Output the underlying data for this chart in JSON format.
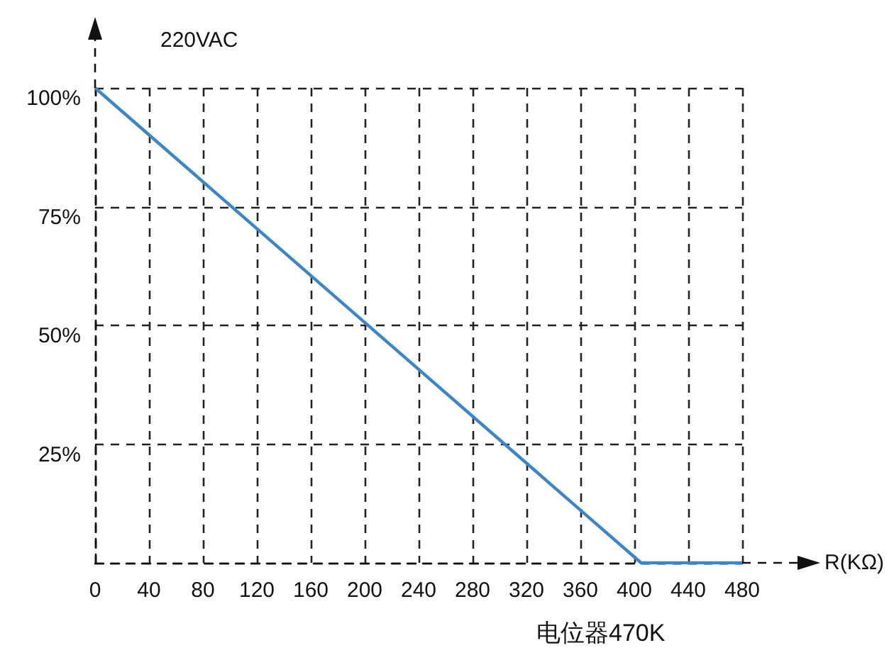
{
  "chart_data": {
    "type": "line",
    "title": "220VAC",
    "xlabel": "R(KΩ)",
    "annotations": [
      "电位器470K"
    ],
    "x": [
      0,
      405,
      480
    ],
    "series": [
      {
        "color": "#3a86c8",
        "values": [
          100,
          0,
          0
        ]
      }
    ],
    "xlim": [
      0,
      480
    ],
    "xticks": [
      0,
      40,
      80,
      120,
      160,
      200,
      240,
      280,
      320,
      360,
      400,
      440,
      480
    ],
    "ylim": [
      0,
      100
    ],
    "yticks": [
      {
        "value": 0,
        "label": null
      },
      {
        "value": 25,
        "label": "25%"
      },
      {
        "value": 50,
        "label": "50%"
      },
      {
        "value": 75,
        "label": "75%"
      },
      {
        "value": 100,
        "label": "100%"
      }
    ],
    "grid": true,
    "marker": "none",
    "line_style": "solid"
  }
}
